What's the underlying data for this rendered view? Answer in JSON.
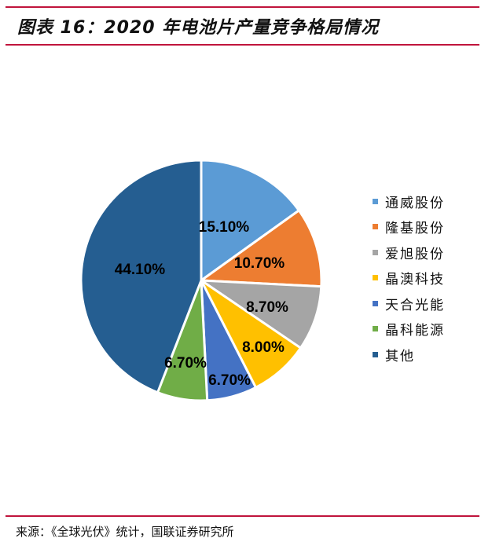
{
  "header": {
    "title": "图表 16：2020 年电池片产量竞争格局情况"
  },
  "footer": {
    "source": "来源：《全球光伏》统计，国联证券研究所"
  },
  "colors": {
    "rule": "#c0143c"
  },
  "chart_data": {
    "type": "pie",
    "title": "2020 年电池片产量竞争格局情况",
    "categories": [
      "通威股份",
      "隆基股份",
      "爱旭股份",
      "晶澳科技",
      "天合光能",
      "晶科能源",
      "其他"
    ],
    "values": [
      15.1,
      10.7,
      8.7,
      8.0,
      6.7,
      6.7,
      44.1
    ],
    "labels": [
      "15.10%",
      "10.70%",
      "8.70%",
      "8.00%",
      "6.70%",
      "6.70%",
      "44.10%"
    ],
    "colors": [
      "#5b9bd5",
      "#ed7d31",
      "#a5a5a5",
      "#ffc000",
      "#4472c4",
      "#70ad47",
      "#255e91"
    ],
    "legend_position": "right",
    "start_angle": "12 o'clock, clockwise"
  },
  "legend": {
    "items": [
      {
        "label": "通威股份"
      },
      {
        "label": "隆基股份"
      },
      {
        "label": "爱旭股份"
      },
      {
        "label": "晶澳科技"
      },
      {
        "label": "天合光能"
      },
      {
        "label": "晶科能源"
      },
      {
        "label": "其他"
      }
    ]
  }
}
